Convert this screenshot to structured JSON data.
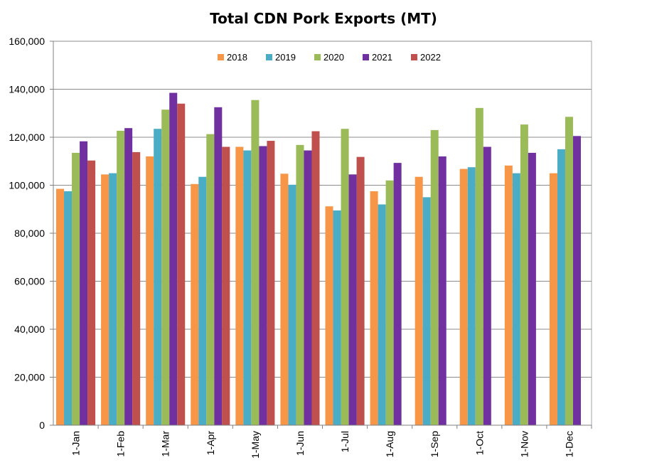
{
  "chart_data": {
    "type": "bar",
    "title": "Total CDN Pork Exports (MT)",
    "xlabel": "",
    "ylabel": "",
    "ylim": [
      0,
      160000
    ],
    "yticks": [
      "0",
      "20,000",
      "40,000",
      "60,000",
      "80,000",
      "100,000",
      "120,000",
      "140,000",
      "160,000"
    ],
    "categories": [
      "1-Jan",
      "1-Feb",
      "1-Mar",
      "1-Apr",
      "1-May",
      "1-Jun",
      "1-Jul",
      "1-Aug",
      "1-Sep",
      "1-Oct",
      "1-Nov",
      "1-Dec"
    ],
    "grid": true,
    "legend_position": "top-center",
    "series": [
      {
        "name": "2018",
        "color": "#F79646",
        "values": [
          98500,
          104500,
          112000,
          100500,
          116000,
          104800,
          91200,
          97500,
          103500,
          106800,
          108200,
          105000
        ]
      },
      {
        "name": "2019",
        "color": "#4BACC6",
        "values": [
          97500,
          105000,
          123500,
          103500,
          114500,
          100200,
          89500,
          92000,
          95000,
          107500,
          105000,
          115000
        ]
      },
      {
        "name": "2020",
        "color": "#9BBB59",
        "values": [
          113500,
          122700,
          131500,
          121300,
          135500,
          116800,
          123500,
          102000,
          123000,
          132200,
          125300,
          128500
        ]
      },
      {
        "name": "2021",
        "color": "#7030A0",
        "values": [
          118300,
          123800,
          138500,
          132500,
          116300,
          114500,
          104500,
          109300,
          112000,
          116000,
          113500,
          120500
        ]
      },
      {
        "name": "2022",
        "color": "#C0504D",
        "values": [
          110300,
          113800,
          134000,
          116000,
          118500,
          122500,
          111800,
          null,
          null,
          null,
          null,
          null
        ]
      }
    ]
  }
}
